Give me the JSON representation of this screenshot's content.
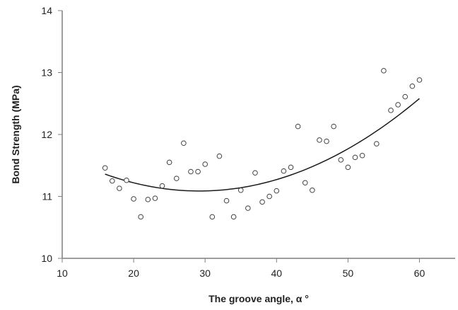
{
  "chart_data": {
    "type": "scatter",
    "title": "",
    "xlabel": "The groove angle, α °",
    "ylabel": "Bond Strength (MPa)",
    "xlim": [
      10,
      65
    ],
    "ylim": [
      10,
      14
    ],
    "x_ticks": [
      10,
      20,
      30,
      40,
      50,
      60
    ],
    "y_ticks": [
      10,
      11,
      12,
      13,
      14
    ],
    "x_tick_labels": [
      "10",
      "20",
      "30",
      "40",
      "50",
      "60"
    ],
    "y_tick_labels": [
      "10",
      "11",
      "12",
      "13",
      "14"
    ],
    "grid": false,
    "legend": "none",
    "marker": "open-circle",
    "colors": {
      "axis": "#7f7f7f",
      "marker": "#404040",
      "trendline": "#1a1a1a"
    },
    "points": [
      {
        "x": 16,
        "y": 11.46
      },
      {
        "x": 17,
        "y": 11.25
      },
      {
        "x": 18,
        "y": 11.13
      },
      {
        "x": 19,
        "y": 11.26
      },
      {
        "x": 20,
        "y": 10.96
      },
      {
        "x": 21,
        "y": 10.67
      },
      {
        "x": 22,
        "y": 10.95
      },
      {
        "x": 23,
        "y": 10.97
      },
      {
        "x": 24,
        "y": 11.17
      },
      {
        "x": 25,
        "y": 11.55
      },
      {
        "x": 26,
        "y": 11.29
      },
      {
        "x": 27,
        "y": 11.86
      },
      {
        "x": 28,
        "y": 11.4
      },
      {
        "x": 29,
        "y": 11.4
      },
      {
        "x": 30,
        "y": 11.52
      },
      {
        "x": 31,
        "y": 10.67
      },
      {
        "x": 32,
        "y": 11.65
      },
      {
        "x": 33,
        "y": 10.93
      },
      {
        "x": 34,
        "y": 10.67
      },
      {
        "x": 35,
        "y": 11.1
      },
      {
        "x": 36,
        "y": 10.81
      },
      {
        "x": 37,
        "y": 11.38
      },
      {
        "x": 38,
        "y": 10.91
      },
      {
        "x": 39,
        "y": 11.0
      },
      {
        "x": 40,
        "y": 11.09
      },
      {
        "x": 41,
        "y": 11.41
      },
      {
        "x": 42,
        "y": 11.47
      },
      {
        "x": 43,
        "y": 12.13
      },
      {
        "x": 44,
        "y": 11.22
      },
      {
        "x": 45,
        "y": 11.1
      },
      {
        "x": 46,
        "y": 11.91
      },
      {
        "x": 47,
        "y": 11.89
      },
      {
        "x": 48,
        "y": 12.13
      },
      {
        "x": 49,
        "y": 11.59
      },
      {
        "x": 50,
        "y": 11.47
      },
      {
        "x": 51,
        "y": 11.63
      },
      {
        "x": 52,
        "y": 11.66
      },
      {
        "x": 54,
        "y": 11.85
      },
      {
        "x": 55,
        "y": 13.03
      },
      {
        "x": 56,
        "y": 12.39
      },
      {
        "x": 57,
        "y": 12.48
      },
      {
        "x": 58,
        "y": 12.61
      },
      {
        "x": 59,
        "y": 12.78
      },
      {
        "x": 60,
        "y": 12.88
      }
    ],
    "trendline": {
      "type": "polynomial",
      "order": 2,
      "x_range": [
        16,
        60
      ],
      "points": [
        {
          "x": 16,
          "y": 11.36
        },
        {
          "x": 30.5,
          "y": 11.09
        },
        {
          "x": 60,
          "y": 12.58
        }
      ]
    }
  }
}
